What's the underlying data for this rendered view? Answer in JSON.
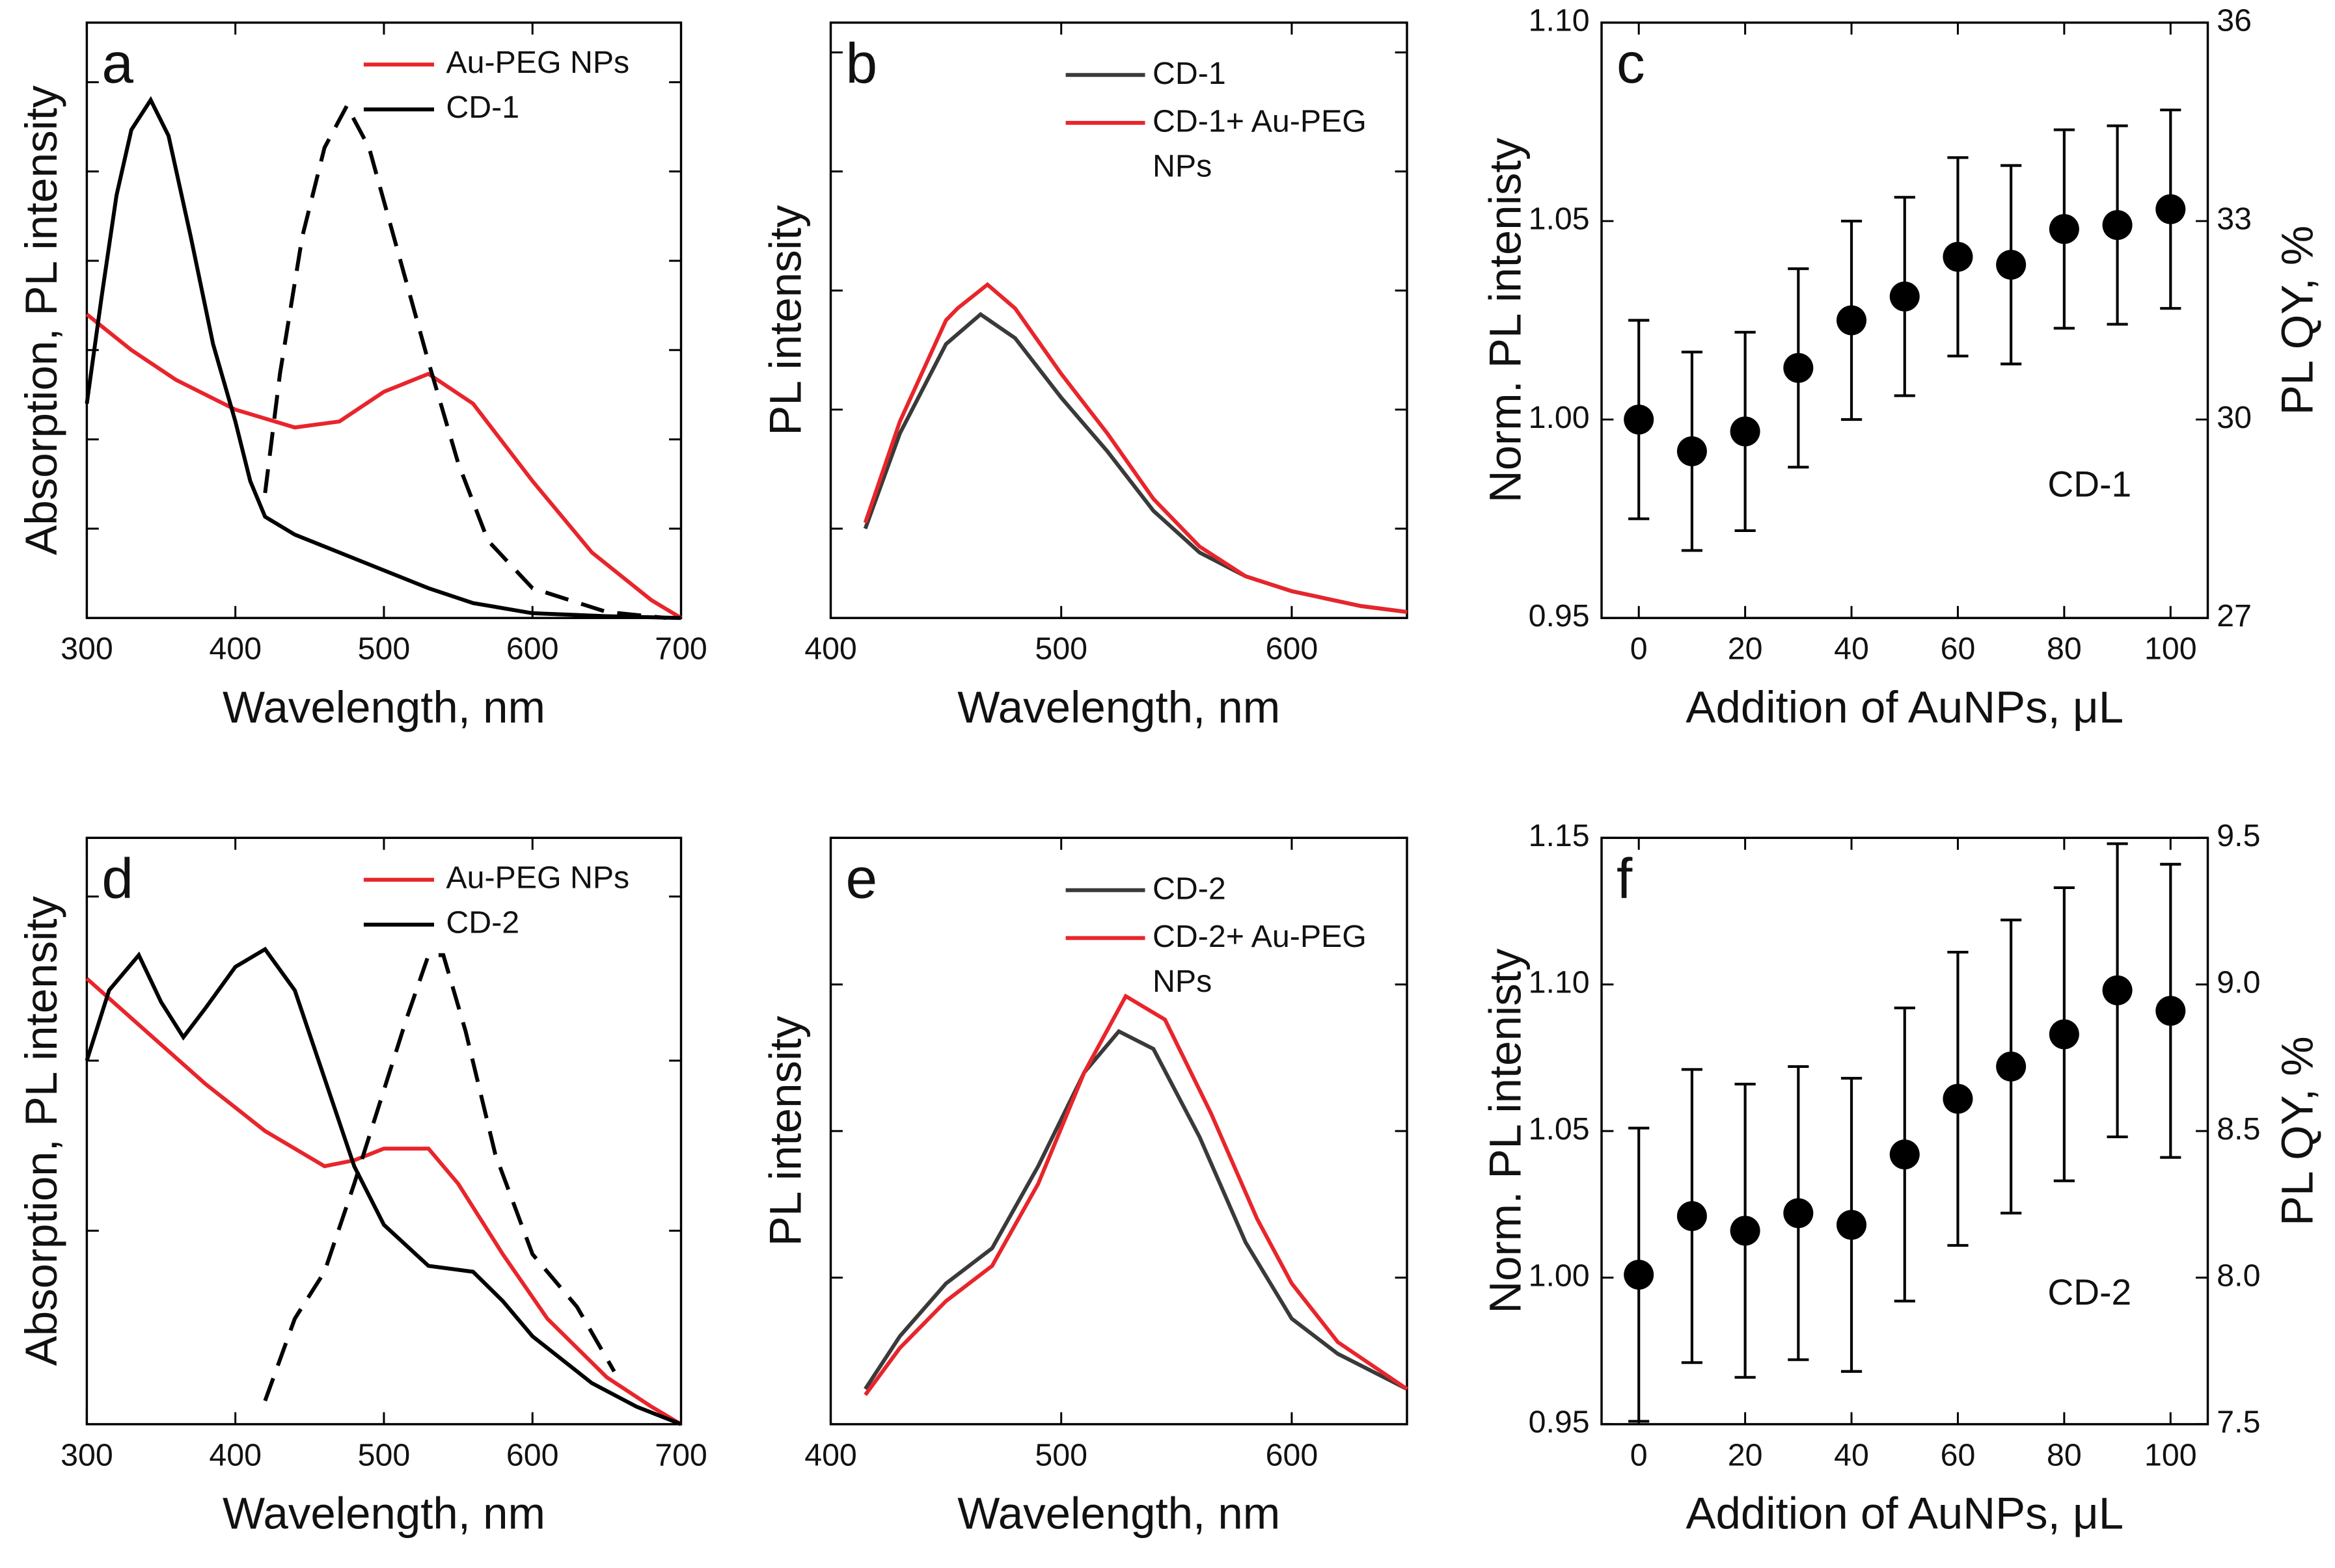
{
  "chart_data": [
    {
      "type": "line",
      "label": "a",
      "xlabel": "Wavelength, nm",
      "ylabel": "Absorption, PL intensity",
      "xlim": [
        300,
        700
      ],
      "xticks": [
        300,
        400,
        500,
        600,
        700
      ],
      "ylim": [
        0,
        1
      ],
      "yticks": [
        0.15,
        0.3,
        0.45,
        0.6,
        0.75,
        0.9
      ],
      "ytick_labels": false,
      "legend": "top-right",
      "series": [
        {
          "name": "Au-PEG NPs",
          "color": "#e8252b",
          "dash": false,
          "x": [
            300,
            330,
            360,
            400,
            440,
            470,
            500,
            530,
            560,
            600,
            640,
            680,
            700
          ],
          "values": [
            0.51,
            0.45,
            0.4,
            0.35,
            0.32,
            0.33,
            0.38,
            0.41,
            0.36,
            0.23,
            0.11,
            0.03,
            0
          ]
        },
        {
          "name": "CD-1",
          "color": "#000000",
          "dash": false,
          "x": [
            300,
            310,
            320,
            330,
            343,
            355,
            370,
            385,
            400,
            410,
            420,
            440,
            470,
            500,
            530,
            560,
            600,
            650,
            700
          ],
          "values": [
            0.36,
            0.54,
            0.71,
            0.82,
            0.87,
            0.81,
            0.64,
            0.46,
            0.33,
            0.23,
            0.17,
            0.14,
            0.11,
            0.08,
            0.05,
            0.025,
            0.008,
            0.003,
            0
          ]
        },
        {
          "color": "#000000",
          "dash": true,
          "x": [
            420,
            430,
            445,
            460,
            475,
            490,
            510,
            530,
            550,
            570,
            600,
            650,
            690
          ],
          "values": [
            0.21,
            0.41,
            0.64,
            0.79,
            0.86,
            0.79,
            0.61,
            0.43,
            0.26,
            0.13,
            0.05,
            0.01,
            0
          ]
        }
      ]
    },
    {
      "type": "line",
      "label": "b",
      "xlabel": "Wavelength, nm",
      "ylabel": "PL intensity",
      "xlim": [
        400,
        650
      ],
      "xticks": [
        400,
        500,
        600
      ],
      "ylim": [
        0,
        1
      ],
      "yticks": [
        0.15,
        0.35,
        0.55,
        0.75,
        0.95
      ],
      "ytick_labels": false,
      "legend": "top-center",
      "series": [
        {
          "name": "CD-1",
          "color": "#3a3a3a",
          "dash": false,
          "x": [
            415,
            430,
            450,
            465,
            480,
            500,
            520,
            540,
            560,
            580,
            600,
            630,
            650
          ],
          "values": [
            0.15,
            0.31,
            0.46,
            0.51,
            0.47,
            0.37,
            0.28,
            0.18,
            0.11,
            0.07,
            0.045,
            0.02,
            0.01
          ]
        },
        {
          "name": "CD-1+ Au-PEG NPs",
          "color": "#e8252b",
          "dash": false,
          "x": [
            415,
            430,
            450,
            455,
            468,
            480,
            500,
            520,
            540,
            560,
            580,
            600,
            630,
            650
          ],
          "values": [
            0.16,
            0.33,
            0.5,
            0.52,
            0.56,
            0.52,
            0.41,
            0.31,
            0.2,
            0.12,
            0.07,
            0.045,
            0.02,
            0.01
          ]
        }
      ]
    },
    {
      "type": "scatter",
      "label": "c",
      "xlabel": "Addition of AuNPs, μL",
      "ylabel": "Norm. PL intenisty",
      "y2label": "PL QY, %",
      "annotation": "CD-1",
      "xlim": [
        -7,
        107
      ],
      "xticks": [
        0,
        20,
        40,
        60,
        80,
        100
      ],
      "ylim": [
        0.95,
        1.1
      ],
      "yticks": [
        {
          "value": 0.95,
          "label": "0.95"
        },
        {
          "value": 1.0,
          "label": "1.00"
        },
        {
          "value": 1.05,
          "label": "1.05"
        },
        {
          "value": 1.1,
          "label": "1.10"
        }
      ],
      "y2lim": [
        27,
        36
      ],
      "y2ticks": [
        27,
        30,
        33,
        36
      ],
      "color": "#000000",
      "x": [
        0,
        10,
        20,
        30,
        40,
        50,
        60,
        70,
        80,
        90,
        100
      ],
      "values": [
        1.0,
        0.992,
        0.997,
        1.013,
        1.025,
        1.031,
        1.041,
        1.039,
        1.048,
        1.049,
        1.053
      ],
      "errors": [
        0.025,
        0.025,
        0.025,
        0.025,
        0.025,
        0.025,
        0.025,
        0.025,
        0.025,
        0.025,
        0.025
      ]
    },
    {
      "type": "line",
      "label": "d",
      "xlabel": "Wavelength, nm",
      "ylabel": "Absorption, PL intensity",
      "xlim": [
        300,
        700
      ],
      "xticks": [
        300,
        400,
        500,
        600,
        700
      ],
      "ylim": [
        0,
        1
      ],
      "yticks": [
        0.33,
        0.62,
        0.9
      ],
      "ytick_labels": false,
      "legend": "top-right",
      "series": [
        {
          "name": "Au-PEG NPs",
          "color": "#e8252b",
          "dash": false,
          "x": [
            300,
            340,
            380,
            420,
            460,
            480,
            500,
            530,
            550,
            580,
            610,
            650,
            680,
            700
          ],
          "values": [
            0.76,
            0.67,
            0.58,
            0.5,
            0.44,
            0.45,
            0.47,
            0.47,
            0.41,
            0.29,
            0.18,
            0.08,
            0.03,
            0
          ]
        },
        {
          "name": "CD-2",
          "color": "#000000",
          "dash": false,
          "x": [
            300,
            315,
            335,
            350,
            365,
            380,
            400,
            420,
            440,
            460,
            480,
            500,
            530,
            560,
            580,
            600,
            640,
            670,
            700
          ],
          "values": [
            0.62,
            0.74,
            0.8,
            0.72,
            0.66,
            0.71,
            0.78,
            0.81,
            0.74,
            0.59,
            0.44,
            0.34,
            0.27,
            0.26,
            0.21,
            0.15,
            0.07,
            0.03,
            0
          ]
        },
        {
          "color": "#000000",
          "dash": true,
          "x": [
            420,
            440,
            460,
            480,
            500,
            515,
            530,
            540,
            555,
            575,
            600,
            630,
            655
          ],
          "values": [
            0.04,
            0.18,
            0.26,
            0.41,
            0.57,
            0.69,
            0.8,
            0.8,
            0.67,
            0.46,
            0.29,
            0.2,
            0.09
          ]
        }
      ]
    },
    {
      "type": "line",
      "label": "e",
      "xlabel": "Wavelength, nm",
      "ylabel": "PL intensity",
      "xlim": [
        400,
        650
      ],
      "xticks": [
        400,
        500,
        600
      ],
      "ylim": [
        0,
        1
      ],
      "yticks": [
        0.25,
        0.5,
        0.75,
        1.0
      ],
      "ytick_labels": false,
      "legend": "top-center",
      "series": [
        {
          "name": "CD-2",
          "color": "#3a3a3a",
          "dash": false,
          "x": [
            415,
            430,
            450,
            470,
            490,
            510,
            525,
            540,
            560,
            580,
            600,
            620,
            650
          ],
          "values": [
            0.06,
            0.15,
            0.24,
            0.3,
            0.44,
            0.6,
            0.67,
            0.64,
            0.49,
            0.31,
            0.18,
            0.12,
            0.06
          ]
        },
        {
          "name": "CD-2+ Au-PEG NPs",
          "color": "#e8252b",
          "dash": false,
          "x": [
            415,
            430,
            450,
            470,
            490,
            510,
            528,
            545,
            565,
            585,
            600,
            620,
            650
          ],
          "values": [
            0.05,
            0.13,
            0.21,
            0.27,
            0.41,
            0.6,
            0.73,
            0.69,
            0.53,
            0.35,
            0.24,
            0.14,
            0.06
          ]
        }
      ]
    },
    {
      "type": "scatter",
      "label": "f",
      "xlabel": "Addition of AuNPs, μL",
      "ylabel": "Norm. PL intenisty",
      "y2label": "PL QY, %",
      "annotation": "CD-2",
      "xlim": [
        -7,
        107
      ],
      "xticks": [
        0,
        20,
        40,
        60,
        80,
        100
      ],
      "ylim": [
        0.95,
        1.15
      ],
      "yticks": [
        {
          "value": 0.95,
          "label": "0.95"
        },
        {
          "value": 1.0,
          "label": "1.00"
        },
        {
          "value": 1.05,
          "label": "1.05"
        },
        {
          "value": 1.1,
          "label": "1.10"
        },
        {
          "value": 1.15,
          "label": "1.15"
        }
      ],
      "y2lim": [
        7.5,
        9.5
      ],
      "y2ticks": [
        {
          "value": 7.5,
          "label": "7.5"
        },
        {
          "value": 8.0,
          "label": "8.0"
        },
        {
          "value": 8.5,
          "label": "8.5"
        },
        {
          "value": 9.0,
          "label": "9.0"
        },
        {
          "value": 9.5,
          "label": "9.5"
        }
      ],
      "color": "#000000",
      "x": [
        0,
        10,
        20,
        30,
        40,
        50,
        60,
        70,
        80,
        90,
        100
      ],
      "values": [
        1.001,
        1.021,
        1.016,
        1.022,
        1.018,
        1.042,
        1.061,
        1.072,
        1.083,
        1.098,
        1.091
      ],
      "errors": [
        0.05,
        0.05,
        0.05,
        0.05,
        0.05,
        0.05,
        0.05,
        0.05,
        0.05,
        0.05,
        0.05
      ]
    }
  ]
}
